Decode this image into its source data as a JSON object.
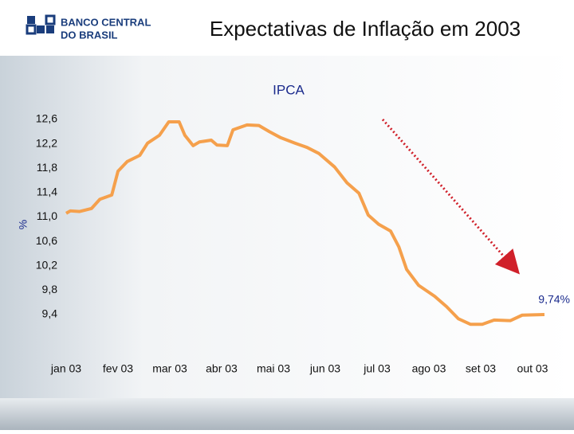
{
  "header": {
    "logo_line1": "BANCO CENTRAL",
    "logo_line2": "DO BRASIL",
    "title": "Expectativas de Inflação em 2003"
  },
  "chart_data": {
    "type": "line",
    "title": "IPCA",
    "y_label": "%",
    "annotation": "9,74%",
    "xlim": [
      0,
      9.4
    ],
    "xticks": [
      {
        "value": 0,
        "label": "jan 03"
      },
      {
        "value": 1,
        "label": "fev 03"
      },
      {
        "value": 2,
        "label": "mar 03"
      },
      {
        "value": 3,
        "label": "abr 03"
      },
      {
        "value": 4,
        "label": "mai 03"
      },
      {
        "value": 5,
        "label": "jun 03"
      },
      {
        "value": 6,
        "label": "jul 03"
      },
      {
        "value": 7,
        "label": "ago 03"
      },
      {
        "value": 8,
        "label": "set 03"
      },
      {
        "value": 9,
        "label": "out 03"
      }
    ],
    "ylim": [
      9.2,
      12.7
    ],
    "yticks": [
      {
        "value": 12.6,
        "label": "12,6"
      },
      {
        "value": 12.2,
        "label": "12,2"
      },
      {
        "value": 11.8,
        "label": "11,8"
      },
      {
        "value": 11.4,
        "label": "11,4"
      },
      {
        "value": 11.0,
        "label": "11,0"
      },
      {
        "value": 10.6,
        "label": "10,6"
      },
      {
        "value": 10.2,
        "label": "10,2"
      },
      {
        "value": 9.8,
        "label": "9,8"
      },
      {
        "value": 9.4,
        "label": "9,4"
      }
    ],
    "x": [
      0,
      0.08,
      0.26,
      0.49,
      0.65,
      0.88,
      1.0,
      1.18,
      1.42,
      1.57,
      1.8,
      1.98,
      2.18,
      2.29,
      2.45,
      2.57,
      2.8,
      2.91,
      3.11,
      3.22,
      3.49,
      3.72,
      3.92,
      4.14,
      4.42,
      4.65,
      4.88,
      5.18,
      5.42,
      5.65,
      5.83,
      6.03,
      6.26,
      6.42,
      6.57,
      6.8,
      7.11,
      7.34,
      7.57,
      7.8,
      8.03,
      8.26,
      8.57,
      8.8,
      9.23
    ],
    "series": [
      {
        "name": "IPCA",
        "color": "#f5a04c",
        "values": [
          11.06,
          11.1,
          11.09,
          11.14,
          11.29,
          11.36,
          11.75,
          11.91,
          12.01,
          12.21,
          12.34,
          12.56,
          12.56,
          12.34,
          12.17,
          12.23,
          12.26,
          12.18,
          12.17,
          12.43,
          12.51,
          12.5,
          12.4,
          12.3,
          12.21,
          12.14,
          12.04,
          11.82,
          11.56,
          11.39,
          11.03,
          10.88,
          10.77,
          10.51,
          10.14,
          9.88,
          9.7,
          9.53,
          9.33,
          9.24,
          9.24,
          9.31,
          9.3,
          9.39,
          9.4
        ]
      }
    ]
  }
}
